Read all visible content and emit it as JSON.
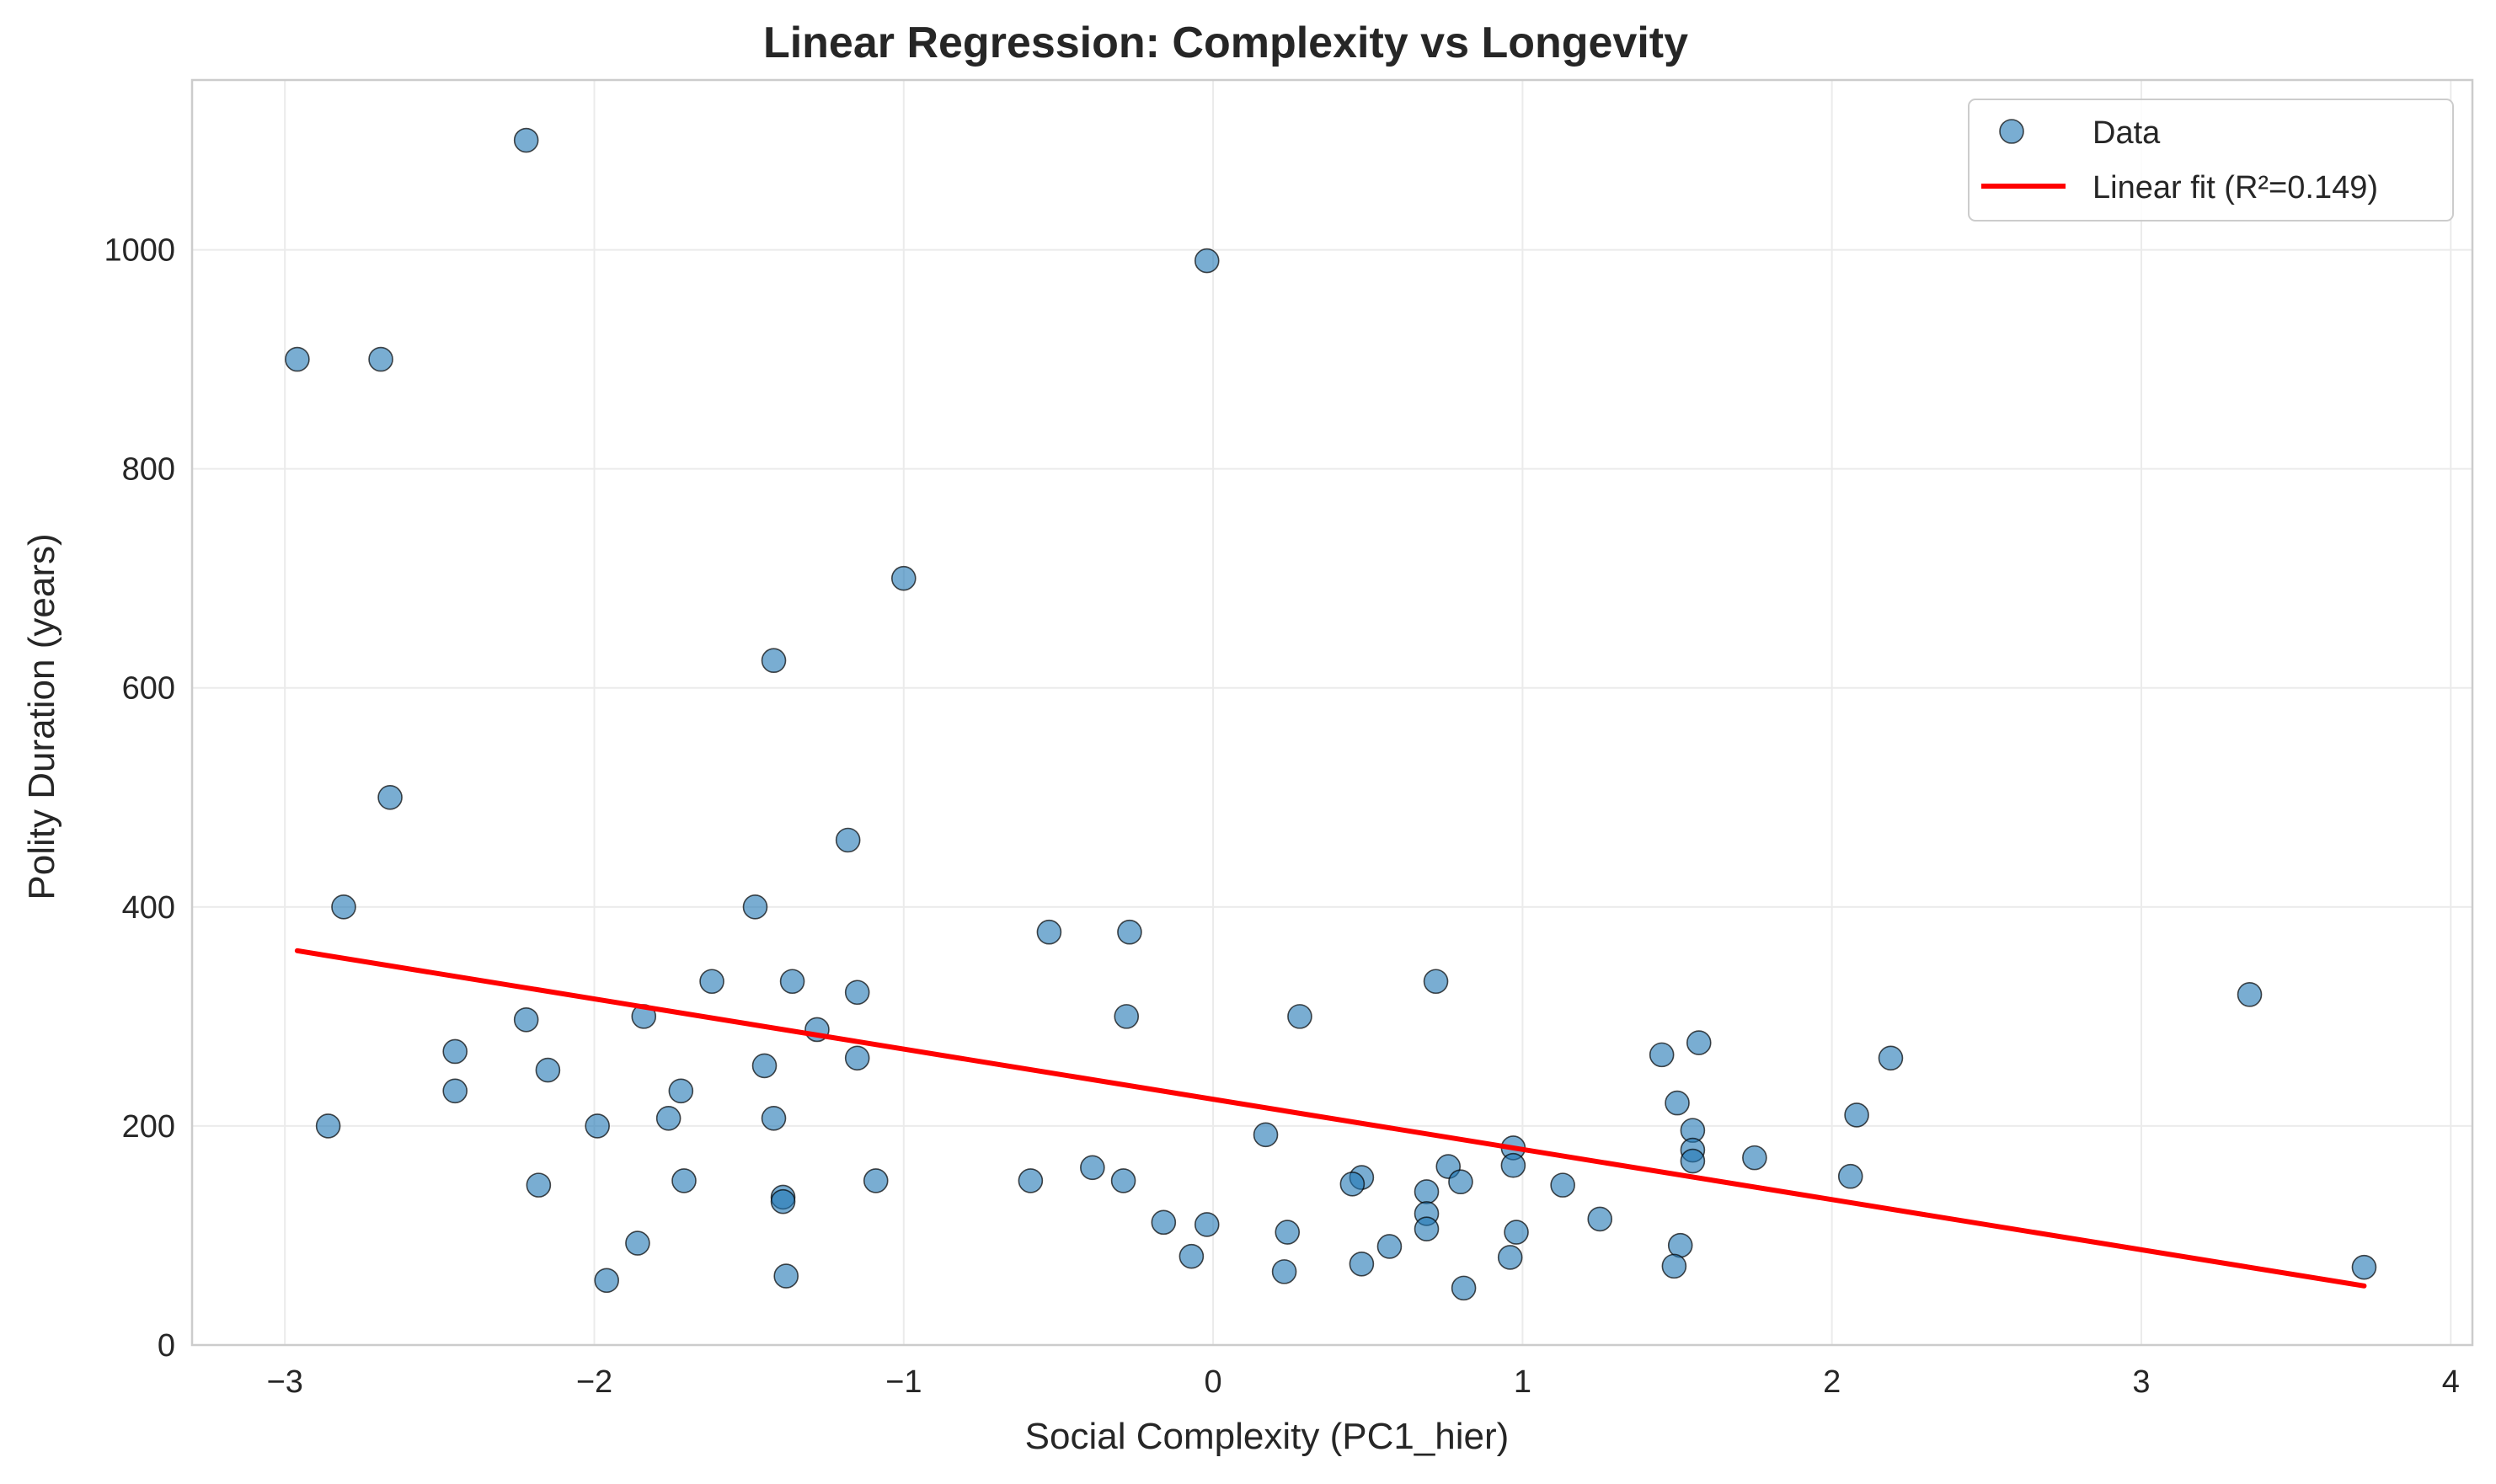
{
  "chart_data": {
    "type": "scatter",
    "title": "Linear Regression: Complexity vs Longevity",
    "xlabel": "Social Complexity (PC1_hier)",
    "ylabel": "Polity Duration (years)",
    "xlim": [
      -3.3,
      4.07
    ],
    "ylim": [
      0,
      1155
    ],
    "xticks": [
      -3,
      -2,
      -1,
      0,
      1,
      2,
      3,
      4
    ],
    "xtick_labels": [
      "−3",
      "−2",
      "−1",
      "0",
      "1",
      "2",
      "3",
      "4"
    ],
    "yticks": [
      0,
      200,
      400,
      600,
      800,
      1000
    ],
    "ytick_labels": [
      "0",
      "200",
      "400",
      "600",
      "800",
      "1000"
    ],
    "grid": true,
    "legend_position": "top-right",
    "series": [
      {
        "name": "Data",
        "kind": "scatter",
        "color": "#1f77b4",
        "points": [
          [
            -2.22,
            1100
          ],
          [
            -2.96,
            900
          ],
          [
            -2.69,
            900
          ],
          [
            -0.02,
            990
          ],
          [
            -1.0,
            700
          ],
          [
            -1.42,
            625
          ],
          [
            -2.66,
            500
          ],
          [
            -1.18,
            461
          ],
          [
            -2.81,
            400
          ],
          [
            -1.48,
            400
          ],
          [
            -0.53,
            377
          ],
          [
            -0.27,
            377
          ],
          [
            -1.62,
            332
          ],
          [
            -1.36,
            332
          ],
          [
            0.72,
            332
          ],
          [
            -2.22,
            297
          ],
          [
            -1.15,
            322
          ],
          [
            3.35,
            320
          ],
          [
            -1.84,
            300
          ],
          [
            -0.28,
            300
          ],
          [
            0.28,
            300
          ],
          [
            -1.28,
            288
          ],
          [
            -2.45,
            268
          ],
          [
            -1.15,
            262
          ],
          [
            -2.15,
            251
          ],
          [
            -1.45,
            255
          ],
          [
            1.45,
            265
          ],
          [
            1.57,
            276
          ],
          [
            2.19,
            262
          ],
          [
            -2.45,
            232
          ],
          [
            -1.72,
            232
          ],
          [
            -1.76,
            207
          ],
          [
            -1.42,
            207
          ],
          [
            -2.86,
            200
          ],
          [
            -1.99,
            200
          ],
          [
            0.17,
            192
          ],
          [
            1.5,
            221
          ],
          [
            1.55,
            196
          ],
          [
            1.55,
            178
          ],
          [
            1.55,
            168
          ],
          [
            2.08,
            210
          ],
          [
            0.97,
            180
          ],
          [
            0.97,
            164
          ],
          [
            1.75,
            171
          ],
          [
            -2.18,
            146
          ],
          [
            -1.71,
            150
          ],
          [
            -1.09,
            150
          ],
          [
            -0.59,
            150
          ],
          [
            -0.29,
            150
          ],
          [
            -1.39,
            135
          ],
          [
            -1.39,
            131
          ],
          [
            -0.39,
            162
          ],
          [
            0.76,
            163
          ],
          [
            0.48,
            153
          ],
          [
            0.45,
            147
          ],
          [
            0.8,
            149
          ],
          [
            0.69,
            140
          ],
          [
            1.13,
            146
          ],
          [
            2.06,
            154
          ],
          [
            0.69,
            120
          ],
          [
            -0.16,
            112
          ],
          [
            -0.02,
            110
          ],
          [
            0.24,
            103
          ],
          [
            0.69,
            106
          ],
          [
            0.98,
            103
          ],
          [
            1.25,
            115
          ],
          [
            -1.86,
            93
          ],
          [
            0.57,
            90
          ],
          [
            1.51,
            91
          ],
          [
            -0.07,
            81
          ],
          [
            0.96,
            80
          ],
          [
            0.48,
            74
          ],
          [
            1.49,
            72
          ],
          [
            3.72,
            71
          ],
          [
            0.23,
            67
          ],
          [
            -1.38,
            63
          ],
          [
            -1.96,
            59
          ],
          [
            0.81,
            52
          ]
        ]
      },
      {
        "name": "Linear fit (R²=0.149)",
        "kind": "line",
        "color": "#ff0000",
        "points": [
          [
            -2.96,
            360
          ],
          [
            3.72,
            54
          ]
        ]
      }
    ]
  }
}
